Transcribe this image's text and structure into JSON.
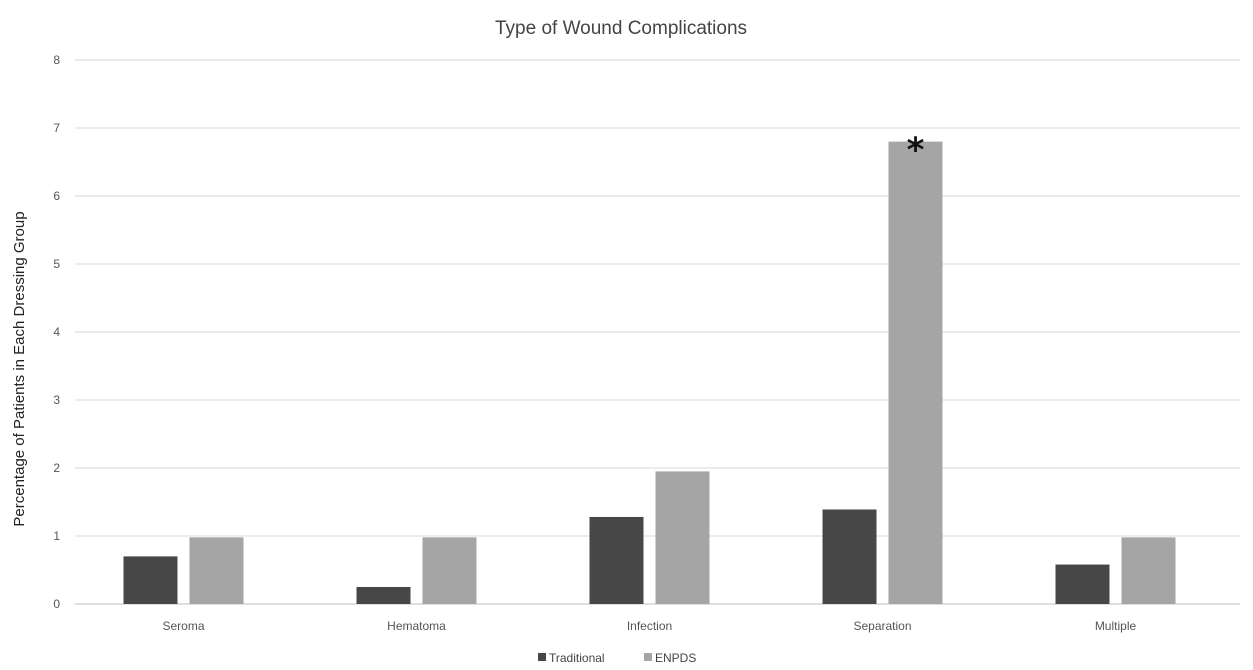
{
  "chart_data": {
    "type": "bar",
    "title": "Type of Wound Complications",
    "xlabel": "",
    "ylabel": "Percentage of Patients in Each Dressing Group",
    "categories": [
      "Seroma",
      "Hematoma",
      "Infection",
      "Separation",
      "Multiple"
    ],
    "series": [
      {
        "name": "Traditional",
        "color": "#474747",
        "values": [
          0.7,
          0.25,
          1.28,
          1.39,
          0.58
        ]
      },
      {
        "name": "ENPDS",
        "color": "#a5a5a5",
        "values": [
          0.98,
          0.98,
          1.95,
          6.8,
          0.98
        ]
      }
    ],
    "ylim": [
      0,
      8
    ],
    "yticks": [
      "0",
      "1",
      "2",
      "3",
      "4",
      "5",
      "6",
      "7",
      "8"
    ],
    "grid": true,
    "legend_position": "bottom",
    "annotations": [
      {
        "text": "*",
        "category": "Separation",
        "series": "ENPDS"
      }
    ]
  }
}
